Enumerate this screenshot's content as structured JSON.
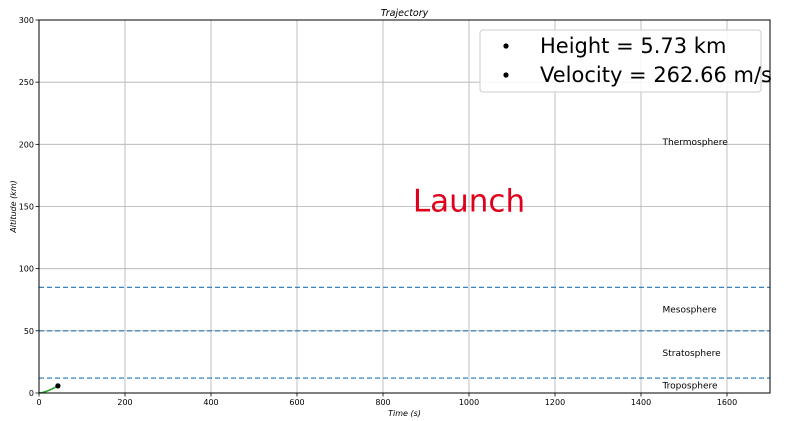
{
  "chart_data": {
    "type": "line",
    "title": "Trajectory",
    "xlabel": "Time (s)",
    "ylabel": "Altitude (km)",
    "xlim": [
      0,
      1700
    ],
    "ylim": [
      0,
      300
    ],
    "x_ticks": [
      0,
      200,
      400,
      600,
      800,
      1000,
      1200,
      1400,
      1600
    ],
    "y_ticks": [
      0,
      50,
      100,
      150,
      200,
      250,
      300
    ],
    "grid": true,
    "series": [
      {
        "color": "#2ca02c",
        "x": [
          0,
          5,
          10,
          15,
          20,
          25,
          30,
          35,
          40,
          44
        ],
        "y": [
          0,
          0.2,
          0.6,
          1.1,
          1.7,
          2.4,
          3.2,
          4.1,
          5.0,
          5.73
        ]
      }
    ],
    "current_point": {
      "x": 44,
      "y": 5.73,
      "color": "#000000"
    },
    "reference_lines": [
      {
        "y": 12,
        "style": "dashed",
        "color": "#1f77b4"
      },
      {
        "y": 50,
        "style": "dashed",
        "color": "#1f77b4"
      },
      {
        "y": 85,
        "style": "dashed",
        "color": "#1f77b4"
      }
    ],
    "annotations": [
      {
        "text": "Troposphere",
        "x": 1450,
        "y": 6
      },
      {
        "text": "Stratosphere",
        "x": 1450,
        "y": 32
      },
      {
        "text": "Mesosphere",
        "x": 1450,
        "y": 67
      },
      {
        "text": "Thermosphere",
        "x": 1450,
        "y": 202
      }
    ],
    "status_text": {
      "text": "Launch",
      "color": "#e0001b",
      "x": 1000,
      "y": 155
    },
    "legend": {
      "placement": "top-right",
      "entries": [
        "Height = 5.73 km",
        "Velocity = 262.66 m/s"
      ]
    }
  }
}
